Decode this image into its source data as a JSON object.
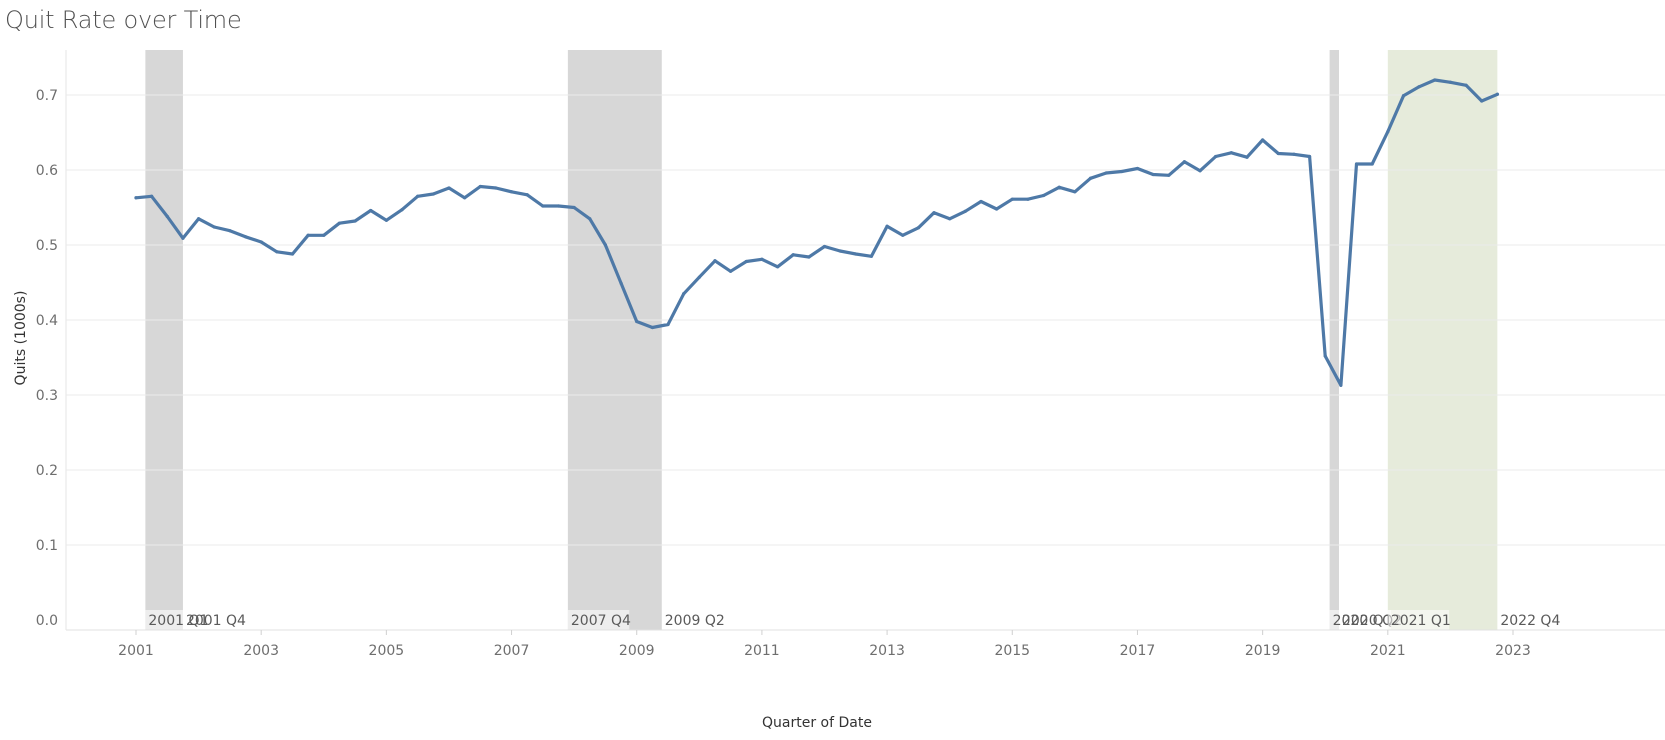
{
  "chart_data": {
    "type": "line",
    "title": "Quit Rate over Time",
    "xlabel": "Quarter of Date",
    "ylabel": "Quits (1000s)",
    "ylim": [
      0,
      0.76
    ],
    "yticks": [
      "0.0",
      "0.1",
      "0.2",
      "0.3",
      "0.4",
      "0.5",
      "0.6",
      "0.7"
    ],
    "xlim": [
      2000.75,
      2024.45
    ],
    "xticks": [
      "2001",
      "2003",
      "2005",
      "2007",
      "2009",
      "2011",
      "2013",
      "2015",
      "2017",
      "2019",
      "2021",
      "2023"
    ],
    "grid": true,
    "series": [
      {
        "color": "#4e79a7",
        "x": [
          2001.0,
          2001.25,
          2001.5,
          2001.75,
          2002.0,
          2002.25,
          2002.5,
          2002.75,
          2003.0,
          2003.25,
          2003.5,
          2003.75,
          2004.0,
          2004.25,
          2004.5,
          2004.75,
          2005.0,
          2005.25,
          2005.5,
          2005.75,
          2006.0,
          2006.25,
          2006.5,
          2006.75,
          2007.0,
          2007.25,
          2007.5,
          2007.75,
          2008.0,
          2008.25,
          2008.5,
          2008.75,
          2009.0,
          2009.25,
          2009.5,
          2009.75,
          2010.0,
          2010.25,
          2010.5,
          2010.75,
          2011.0,
          2011.25,
          2011.5,
          2011.75,
          2012.0,
          2012.25,
          2012.5,
          2012.75,
          2013.0,
          2013.25,
          2013.5,
          2013.75,
          2014.0,
          2014.25,
          2014.5,
          2014.75,
          2015.0,
          2015.25,
          2015.5,
          2015.75,
          2016.0,
          2016.25,
          2016.5,
          2016.75,
          2017.0,
          2017.25,
          2017.5,
          2017.75,
          2018.0,
          2018.25,
          2018.5,
          2018.75,
          2019.0,
          2019.25,
          2019.5,
          2019.75,
          2020.0,
          2020.25,
          2020.5,
          2020.75,
          2021.0,
          2021.25,
          2021.5,
          2021.75,
          2022.0,
          2022.25,
          2022.5,
          2022.75
        ],
        "values": [
          0.563,
          0.565,
          0.538,
          0.509,
          0.535,
          0.524,
          0.519,
          0.511,
          0.504,
          0.491,
          0.488,
          0.513,
          0.513,
          0.529,
          0.532,
          0.546,
          0.533,
          0.547,
          0.565,
          0.568,
          0.576,
          0.563,
          0.578,
          0.576,
          0.571,
          0.567,
          0.552,
          0.552,
          0.55,
          0.535,
          0.5,
          0.449,
          0.398,
          0.39,
          0.394,
          0.435,
          0.457,
          0.479,
          0.465,
          0.478,
          0.481,
          0.471,
          0.487,
          0.484,
          0.498,
          0.492,
          0.488,
          0.485,
          0.525,
          0.513,
          0.523,
          0.543,
          0.535,
          0.545,
          0.558,
          0.548,
          0.561,
          0.561,
          0.566,
          0.577,
          0.571,
          0.589,
          0.596,
          0.598,
          0.602,
          0.594,
          0.593,
          0.611,
          0.599,
          0.618,
          0.623,
          0.617,
          0.64,
          0.622,
          0.621,
          0.618,
          0.352,
          0.313,
          0.608,
          0.608,
          0.651,
          0.699,
          0.711,
          0.72,
          0.717,
          0.713,
          0.692,
          0.701
        ]
      }
    ],
    "bands": [
      {
        "x0": 2001.15,
        "x1": 2001.75,
        "color": "#d7d7d7",
        "label_start": "2001 Q1",
        "label_end": "2001 Q4"
      },
      {
        "x0": 2007.9,
        "x1": 2009.4,
        "color": "#d7d7d7",
        "label_start": "2007 Q4",
        "label_end": "2009 Q2"
      },
      {
        "x0": 2020.07,
        "x1": 2020.22,
        "color": "#d7d7d7",
        "label_start": "2020 Q1",
        "label_end": "2020 Q2"
      },
      {
        "x0": 2021.0,
        "x1": 2022.75,
        "color": "#e6ebdb",
        "label_start": "2021 Q1",
        "label_end": "2022 Q4"
      }
    ]
  }
}
